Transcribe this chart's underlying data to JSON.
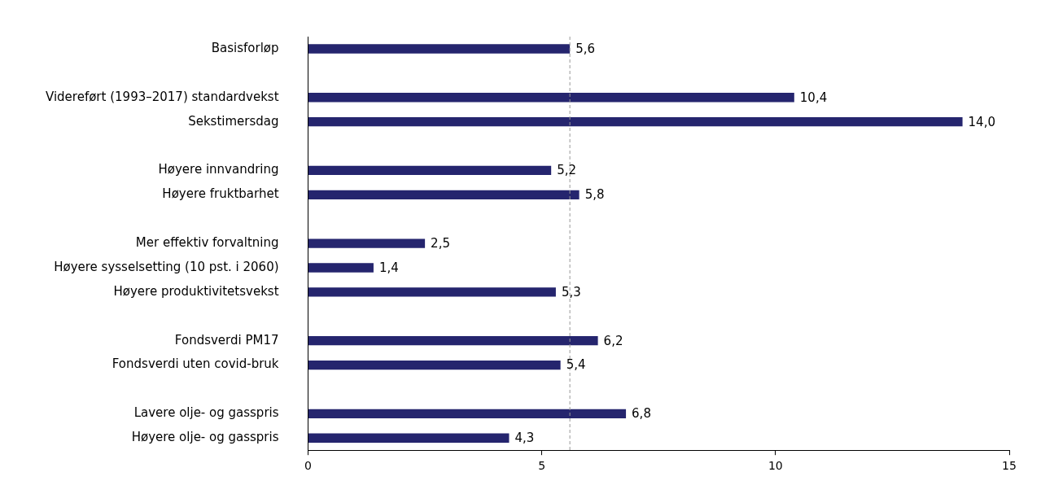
{
  "chart_data": {
    "type": "bar",
    "orientation": "horizontal",
    "categories": [
      "Basisforløp",
      null,
      "Videreført (1993–2017) standardvekst",
      "Sekstimersdag",
      null,
      "Høyere innvandring",
      "Høyere fruktbarhet",
      null,
      "Mer effektiv forvaltning",
      "Høyere sysselsetting (10 pst. i 2060)",
      "Høyere produktivitetsvekst",
      null,
      "Fondsverdi PM17",
      "Fondsverdi uten covid-bruk",
      null,
      "Lavere olje- og gasspris",
      "Høyere olje- og gasspris"
    ],
    "values": [
      5.6,
      null,
      10.4,
      14.0,
      null,
      5.2,
      5.8,
      null,
      2.5,
      1.4,
      5.3,
      null,
      6.2,
      5.4,
      null,
      6.8,
      4.3
    ],
    "value_labels": [
      "5,6",
      null,
      "10,4",
      "14,0",
      null,
      "5,2",
      "5,8",
      null,
      "2,5",
      "1,4",
      "5,3",
      null,
      "6,2",
      "5,4",
      null,
      "6,8",
      "4,3"
    ],
    "color": "#25256e",
    "xlim": [
      0,
      15
    ],
    "xticks": [
      0,
      5,
      10,
      15
    ],
    "ref_lines": [
      {
        "axis": "x",
        "value": 5.6,
        "color": "#999999",
        "line_style": "dashed"
      }
    ],
    "grid": false,
    "legend": false
  }
}
